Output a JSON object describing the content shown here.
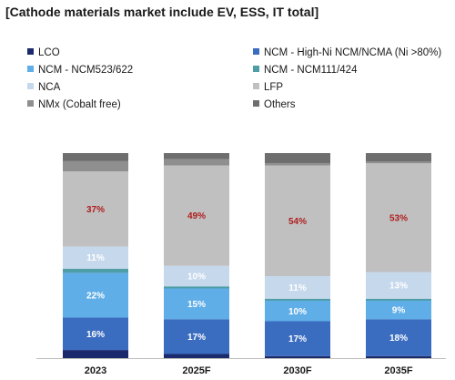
{
  "title": "[Cathode materials market include EV, ESS, IT total]",
  "chart_data": {
    "type": "bar",
    "stacked": true,
    "value_unit": "%",
    "categories": [
      "2023",
      "2025F",
      "2030F",
      "2035F"
    ],
    "legend_placement": "top",
    "series": [
      {
        "name": "LCO",
        "color": "#1a2a6c",
        "values": [
          4,
          2,
          1,
          1
        ],
        "labels": [
          "",
          "",
          "",
          ""
        ]
      },
      {
        "name": "NCM - High-Ni NCM/NCMA (Ni >80%)",
        "color": "#3a6cc0",
        "values": [
          16,
          17,
          17,
          18
        ],
        "labels": [
          "16%",
          "17%",
          "17%",
          "18%"
        ]
      },
      {
        "name": "NCM - NCM523/622",
        "color": "#5faee8",
        "values": [
          22,
          15,
          10,
          9
        ],
        "labels": [
          "22%",
          "15%",
          "10%",
          "9%"
        ]
      },
      {
        "name": "NCM - NCM111/424",
        "color": "#4f9ea7",
        "values": [
          2,
          1,
          1,
          1
        ],
        "labels": [
          "",
          "",
          "",
          ""
        ]
      },
      {
        "name": "NCA",
        "color": "#c5d8ec",
        "values": [
          11,
          10,
          11,
          13
        ],
        "labels": [
          "11%",
          "10%",
          "11%",
          "13%"
        ]
      },
      {
        "name": "LFP",
        "color": "#c0c0c0",
        "values": [
          37,
          49,
          54,
          53
        ],
        "labels": [
          "37%",
          "49%",
          "54%",
          "53%"
        ]
      },
      {
        "name": "NMx (Cobalt free)",
        "color": "#8f8f8f",
        "values": [
          5,
          3,
          1,
          1
        ],
        "labels": [
          "",
          "",
          "",
          ""
        ]
      },
      {
        "name": "Others",
        "color": "#6e6e6e",
        "values": [
          4,
          3,
          5,
          4
        ],
        "labels": [
          "",
          "",
          "",
          ""
        ]
      }
    ]
  }
}
